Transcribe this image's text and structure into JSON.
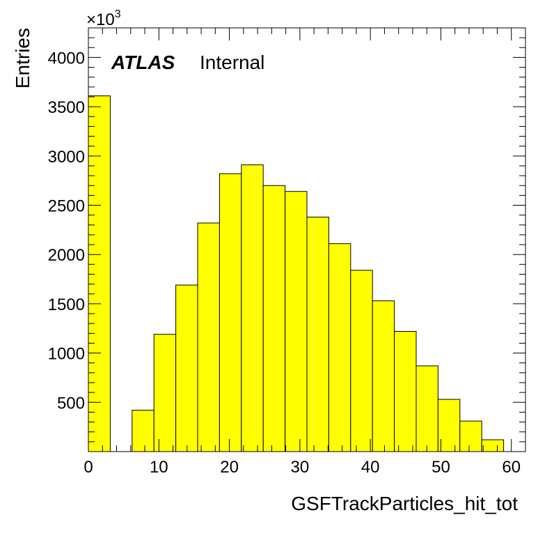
{
  "chart_data": {
    "type": "bar",
    "xlabel": "GSFTrackParticles_hit_tot",
    "ylabel": "Entries",
    "y_multiplier": "×10",
    "y_multiplier_exp": "3",
    "atlas_label": "ATLAS",
    "atlas_status": "Internal",
    "xlim": [
      0,
      62
    ],
    "ylim": [
      0,
      4300
    ],
    "x_ticks": [
      0,
      10,
      20,
      30,
      40,
      50,
      60
    ],
    "y_ticks": [
      500,
      1000,
      1500,
      2000,
      2500,
      3000,
      3500,
      4000
    ],
    "bin_width": 3.1,
    "bin_low_edges": [
      0,
      3.1,
      6.2,
      9.3,
      12.4,
      15.5,
      18.6,
      21.7,
      24.8,
      27.9,
      31.0,
      34.1,
      37.2,
      40.3,
      43.4,
      46.5,
      49.6,
      52.7,
      55.8
    ],
    "values": [
      3610,
      0,
      420,
      1190,
      1690,
      2320,
      2820,
      2910,
      2700,
      2640,
      2380,
      2110,
      1840,
      1530,
      1220,
      870,
      530,
      310,
      120
    ],
    "fill_color": "#ffff00",
    "line_color": "#000000",
    "grid": false
  }
}
